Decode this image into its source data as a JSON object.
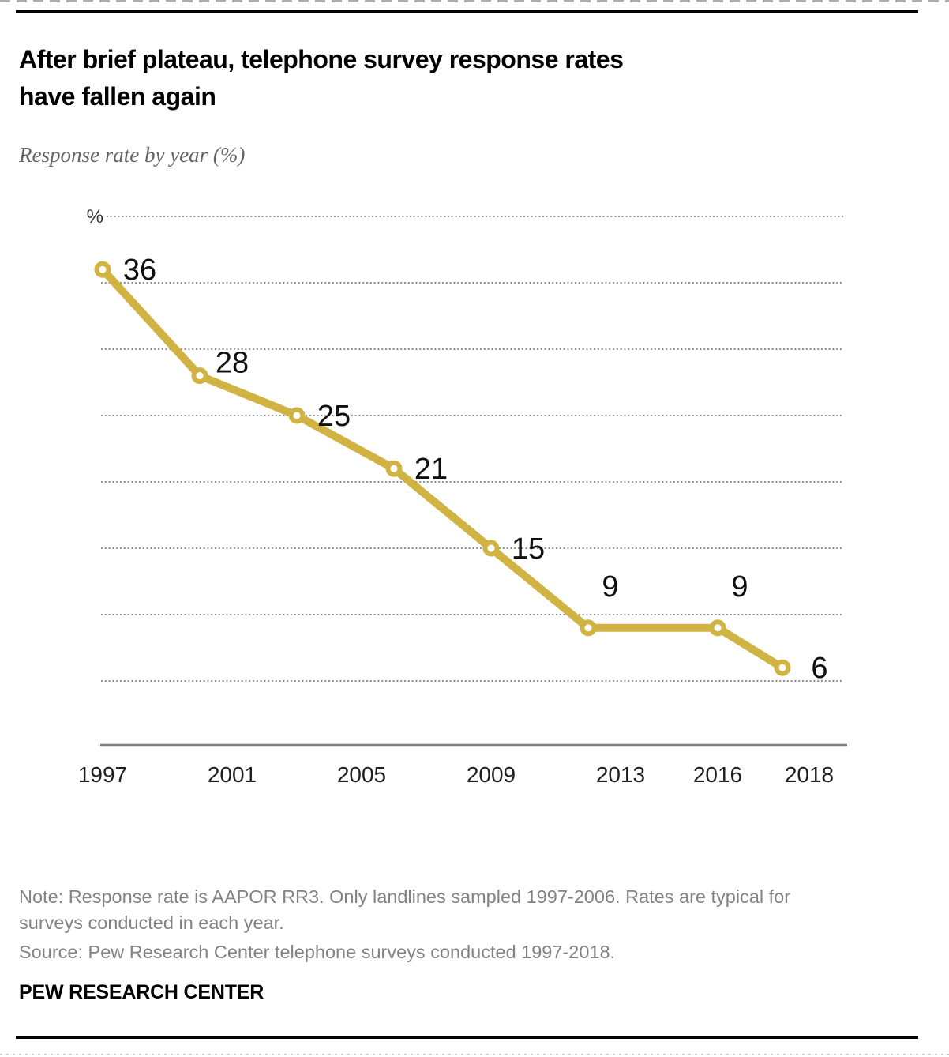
{
  "header": {
    "title_lines": [
      "After brief plateau, telephone survey response rates",
      "have fallen again"
    ],
    "subtitle": "Response rate by year (%)"
  },
  "chart_data": {
    "type": "line",
    "title": "After brief plateau, telephone survey response rates have fallen again",
    "subtitle": "Response rate by year (%)",
    "unit_label": "%",
    "x": [
      1997,
      2000,
      2003,
      2006,
      2009,
      2012,
      2016,
      2018
    ],
    "values": [
      36,
      28,
      25,
      21,
      15,
      9,
      9,
      6
    ],
    "point_labels": [
      "36",
      "28",
      "25",
      "21",
      "15",
      "9",
      "9",
      "6"
    ],
    "label_placement": [
      "right",
      "above-right",
      "right",
      "right",
      "right",
      "above",
      "above",
      "right"
    ],
    "line_color": "#d1b343",
    "marker_fill": "#ffffff",
    "label_color": "#101010",
    "gridline_color": "#8f8f8f",
    "axis_color": "#7f7f7f",
    "tick_color": "#1f1f1f",
    "xlim": [
      1997,
      2018
    ],
    "ylim": [
      0,
      40
    ],
    "gridlines": [
      40,
      35,
      30,
      25,
      20,
      15,
      10,
      5
    ],
    "grid_style": "dotted-horizontal",
    "legend": "none",
    "x_ticks": [
      {
        "label": "1997",
        "year": 1997
      },
      {
        "label": "2001",
        "year": 2001
      },
      {
        "label": "2005",
        "year": 2005
      },
      {
        "label": "2009",
        "year": 2009
      },
      {
        "label": "2013",
        "year": 2013
      },
      {
        "label": "2016",
        "year": 2016
      },
      {
        "label": "2018",
        "year": 2018,
        "x_nudge": 34
      }
    ]
  },
  "footer": {
    "note_lines": [
      "Note: Response rate is AAPOR RR3. Only landlines sampled 1997-2006. Rates are typical for",
      "surveys conducted in each year."
    ],
    "source": "Source: Pew Research Center telephone surveys conducted 1997-2018.",
    "brand": "PEW RESEARCH CENTER"
  }
}
